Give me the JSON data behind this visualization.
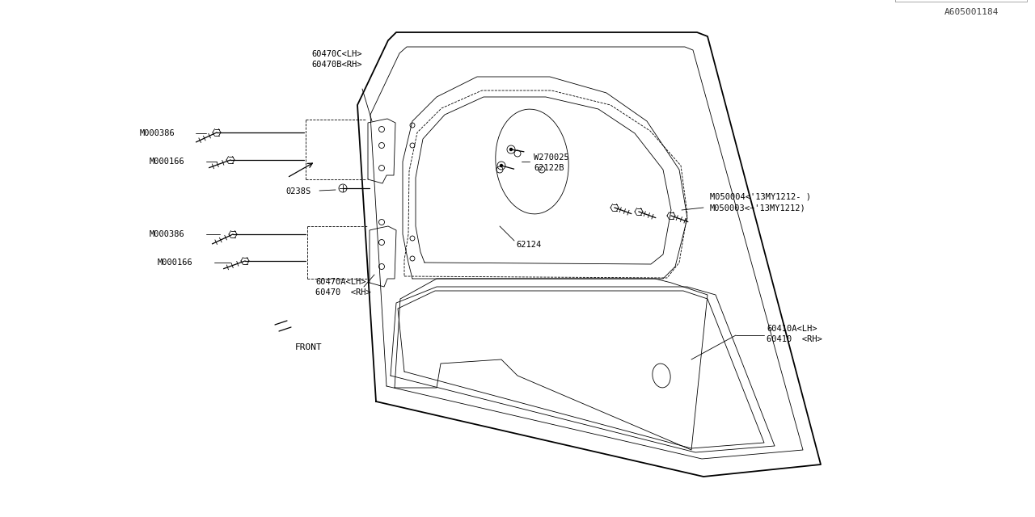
{
  "bg_color": "#ffffff",
  "line_color": "#000000",
  "diagram_id": "A605001184",
  "labels": {
    "front_arrow": "FRONT",
    "part_60410_rh": "60410  <RH>",
    "part_60410a_lh": "60410A<LH>",
    "part_60470_rh": "60470  <RH>",
    "part_60470a_lh": "60470A<LH>",
    "part_62124": "62124",
    "part_62122b": "62122B",
    "part_w270025": "W270025",
    "part_m050003": "M050003<−'13MY1212)",
    "part_m050004": "M050004<'13MY1212- )",
    "part_0238s": "0238S",
    "part_m000166_top": "M000166",
    "part_m000386_top": "M000386",
    "part_m000166_bot": "M000166",
    "part_m000386_bot": "M000386",
    "part_60470b_rh": "60470B<RH>",
    "part_60470c_lh": "60470C<LH>"
  },
  "font_size_labels": 7.5,
  "font_size_id": 8,
  "line_width": 0.9,
  "thin_line": 0.6
}
